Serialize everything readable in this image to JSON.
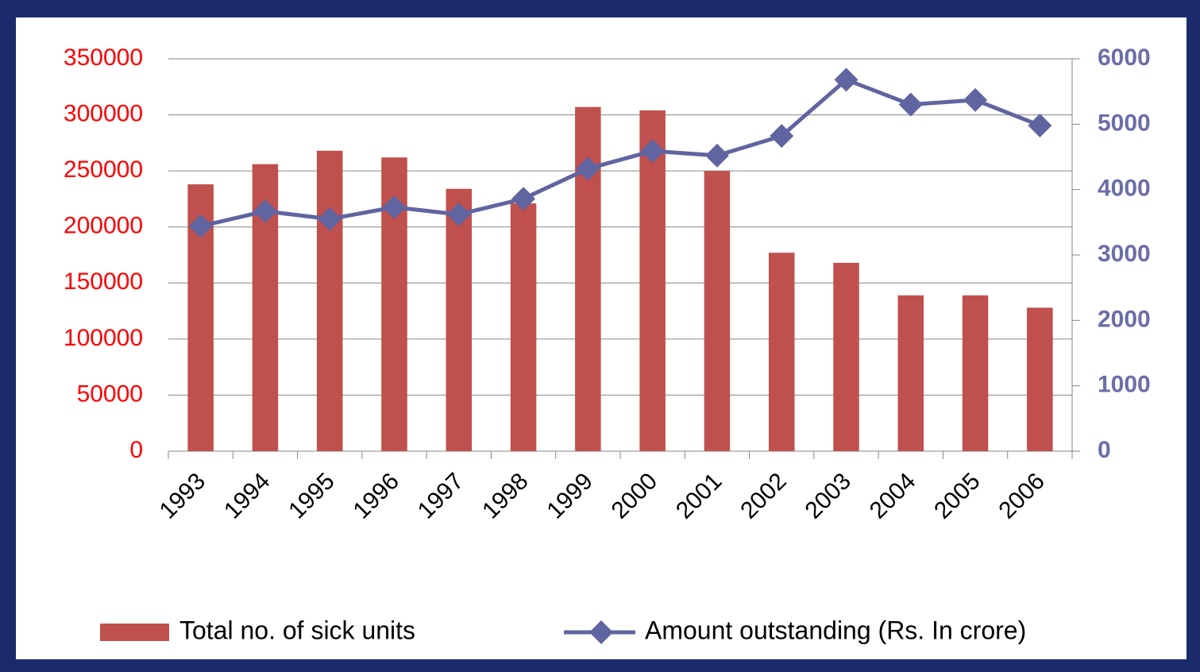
{
  "chart_data": {
    "type": "bar_line",
    "categories": [
      "1993",
      "1994",
      "1995",
      "1996",
      "1997",
      "1998",
      "1999",
      "2000",
      "2001",
      "2002",
      "2003",
      "2004",
      "2005",
      "2006"
    ],
    "series": [
      {
        "name": "Total no. of sick units",
        "type": "bar",
        "color": "#c0504d",
        "axis": "y",
        "values": [
          238000,
          256000,
          268000,
          262000,
          234000,
          221000,
          307000,
          304000,
          250000,
          177000,
          168000,
          139000,
          139000,
          128000
        ]
      },
      {
        "name": "Amount outstanding (Rs. In crore)",
        "type": "line",
        "color": "#6064a0",
        "axis": "y2",
        "values": [
          3440,
          3670,
          3550,
          3730,
          3620,
          3860,
          4320,
          4590,
          4520,
          4820,
          5680,
          5300,
          5370,
          4980
        ]
      }
    ],
    "ylim": [
      0,
      350000
    ],
    "yticks": [
      0,
      50000,
      100000,
      150000,
      200000,
      250000,
      300000,
      350000
    ],
    "y2lim": [
      0,
      6000
    ],
    "y2ticks": [
      0,
      1000,
      2000,
      3000,
      4000,
      5000,
      6000
    ],
    "grid": true,
    "legend": "bottom"
  }
}
